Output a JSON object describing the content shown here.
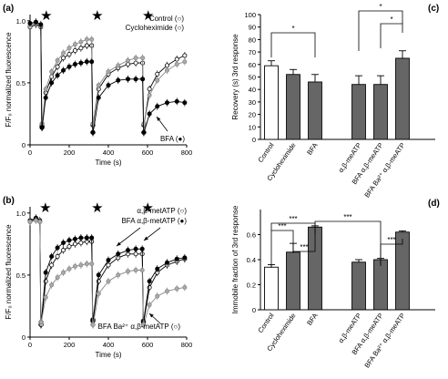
{
  "chart_data": [
    {
      "panel_label": "(a)",
      "type": "line",
      "xlabel": "Time (s)",
      "ylabel": "F/F₀ normalized fluorescence",
      "xlim": [
        0,
        800
      ],
      "ylim": [
        0,
        1.05
      ],
      "xticks": [
        "0",
        "200",
        "400",
        "600",
        "800"
      ],
      "yticks": [
        "0",
        "0.5",
        "1.0"
      ],
      "stimulus_marker": "★",
      "stimulus_times": [
        60,
        320,
        580
      ],
      "series": [
        {
          "name": "Control (○)",
          "color": "#ffffff",
          "stroke": "#000000",
          "x": [
            0,
            30,
            55,
            60,
            62,
            80,
            110,
            140,
            170,
            200,
            230,
            260,
            290,
            315,
            320,
            322,
            350,
            400,
            450,
            500,
            540,
            575,
            580,
            582,
            610,
            650,
            700,
            750,
            790
          ],
          "y": [
            0.95,
            0.97,
            0.95,
            0.15,
            0.15,
            0.42,
            0.55,
            0.63,
            0.7,
            0.73,
            0.76,
            0.78,
            0.8,
            0.8,
            0.16,
            0.16,
            0.45,
            0.57,
            0.62,
            0.65,
            0.66,
            0.66,
            0.16,
            0.16,
            0.45,
            0.57,
            0.64,
            0.69,
            0.72
          ]
        },
        {
          "name": "Cycloheximide (○)",
          "color": "#aaaaaa",
          "stroke": "#888888",
          "x": [
            0,
            30,
            55,
            60,
            62,
            80,
            110,
            140,
            170,
            200,
            230,
            260,
            290,
            315,
            320,
            322,
            350,
            400,
            450,
            500,
            540,
            575,
            580,
            582,
            610,
            650,
            700,
            750,
            790
          ],
          "y": [
            0.97,
            0.98,
            0.96,
            0.17,
            0.17,
            0.45,
            0.59,
            0.68,
            0.74,
            0.78,
            0.81,
            0.83,
            0.85,
            0.85,
            0.17,
            0.17,
            0.48,
            0.59,
            0.64,
            0.68,
            0.7,
            0.7,
            0.17,
            0.17,
            0.4,
            0.52,
            0.6,
            0.65,
            0.67
          ]
        },
        {
          "name": "BFA (●)",
          "color": "#000000",
          "stroke": "#000000",
          "x": [
            0,
            30,
            55,
            60,
            62,
            80,
            110,
            140,
            170,
            200,
            230,
            260,
            290,
            315,
            320,
            322,
            350,
            400,
            450,
            500,
            540,
            575,
            580,
            582,
            610,
            650,
            700,
            750,
            790
          ],
          "y": [
            0.98,
            0.99,
            0.97,
            0.14,
            0.14,
            0.38,
            0.5,
            0.56,
            0.6,
            0.63,
            0.65,
            0.66,
            0.67,
            0.67,
            0.1,
            0.1,
            0.38,
            0.48,
            0.52,
            0.53,
            0.53,
            0.53,
            0.1,
            0.1,
            0.25,
            0.31,
            0.34,
            0.35,
            0.34
          ]
        }
      ]
    },
    {
      "panel_label": "(b)",
      "type": "line",
      "xlabel": "Time (s)",
      "ylabel": "F/F₀ normalized fluorescence",
      "xlim": [
        0,
        800
      ],
      "ylim": [
        0,
        1.05
      ],
      "xticks": [
        "0",
        "200",
        "400",
        "600",
        "800"
      ],
      "yticks": [
        "0",
        "0.5",
        "1.0"
      ],
      "stimulus_marker": "★",
      "stimulus_times": [
        55,
        320,
        578
      ],
      "series": [
        {
          "name": "α,β-metATP (○)",
          "color": "#ffffff",
          "stroke": "#000000",
          "x": [
            0,
            30,
            50,
            55,
            57,
            80,
            110,
            140,
            170,
            200,
            230,
            260,
            290,
            315,
            320,
            322,
            350,
            400,
            450,
            500,
            540,
            573,
            578,
            580,
            610,
            650,
            700,
            750,
            790
          ],
          "y": [
            0.93,
            0.95,
            0.93,
            0.1,
            0.1,
            0.45,
            0.58,
            0.65,
            0.7,
            0.73,
            0.75,
            0.76,
            0.77,
            0.77,
            0.13,
            0.13,
            0.45,
            0.58,
            0.64,
            0.67,
            0.67,
            0.67,
            0.12,
            0.12,
            0.4,
            0.52,
            0.58,
            0.61,
            0.63
          ]
        },
        {
          "name": "BFA α,β-metATP (●)",
          "color": "#000000",
          "stroke": "#000000",
          "x": [
            0,
            30,
            50,
            55,
            57,
            80,
            110,
            140,
            170,
            200,
            230,
            260,
            290,
            315,
            320,
            322,
            350,
            400,
            450,
            500,
            540,
            573,
            578,
            580,
            610,
            650,
            700,
            750,
            790
          ],
          "y": [
            0.94,
            0.96,
            0.94,
            0.12,
            0.12,
            0.52,
            0.65,
            0.72,
            0.76,
            0.78,
            0.79,
            0.8,
            0.8,
            0.8,
            0.14,
            0.14,
            0.5,
            0.62,
            0.67,
            0.7,
            0.71,
            0.71,
            0.13,
            0.13,
            0.45,
            0.55,
            0.6,
            0.63,
            0.64
          ]
        },
        {
          "name": "BFA Ba²⁺ α,β-metATP (○)",
          "color": "#aaaaaa",
          "stroke": "#888888",
          "x": [
            0,
            30,
            50,
            55,
            57,
            80,
            110,
            140,
            170,
            200,
            230,
            260,
            290,
            315,
            320,
            322,
            350,
            400,
            450,
            500,
            540,
            573,
            578,
            580,
            610,
            650,
            700,
            750,
            790
          ],
          "y": [
            0.93,
            0.94,
            0.93,
            0.12,
            0.12,
            0.32,
            0.42,
            0.48,
            0.52,
            0.55,
            0.57,
            0.58,
            0.59,
            0.59,
            0.1,
            0.1,
            0.35,
            0.45,
            0.5,
            0.53,
            0.54,
            0.54,
            0.1,
            0.1,
            0.26,
            0.33,
            0.37,
            0.39,
            0.4
          ]
        }
      ]
    },
    {
      "panel_label": "(c)",
      "type": "bar",
      "ylabel": "Recovery (s) 3rd response",
      "ylim": [
        0,
        100
      ],
      "yticks": [
        "0",
        "10",
        "20",
        "30",
        "40",
        "50",
        "60",
        "70",
        "80",
        "90",
        "100"
      ],
      "categories": [
        "Control",
        "Cycloheximide",
        "BFA",
        "α,β-meATP",
        "BFA α,β-meATP",
        "BFA Ba²⁺ α,β-meATP"
      ],
      "values": [
        59,
        52,
        46,
        44,
        44,
        65
      ],
      "errors": [
        4,
        4,
        6,
        7,
        7,
        6
      ],
      "bar_colors": [
        "#ffffff",
        "#666666",
        "#666666",
        "#666666",
        "#666666",
        "#666666"
      ],
      "significance": [
        {
          "from": 0,
          "to": 2,
          "label": "*"
        },
        {
          "from": 3,
          "to": 5,
          "label": "*"
        },
        {
          "from": 4,
          "to": 5,
          "label": "*"
        }
      ]
    },
    {
      "panel_label": "(d)",
      "type": "bar",
      "ylabel": "Immobile fraction of 3rd response",
      "ylim": [
        0,
        0.8
      ],
      "yticks": [
        "0",
        "0.2",
        "0.4",
        "0.6"
      ],
      "categories": [
        "Control",
        "Cycloheximide",
        "BFA",
        "α,β-meATP",
        "BFA α,β-meATP",
        "BFA Ba²⁺ α,β-meATP"
      ],
      "values": [
        0.34,
        0.46,
        0.66,
        0.38,
        0.4,
        0.62
      ],
      "errors": [
        0.02,
        0.07,
        0.01,
        0.02,
        0.01,
        0.01
      ],
      "bar_colors": [
        "#ffffff",
        "#666666",
        "#666666",
        "#666666",
        "#666666",
        "#666666"
      ],
      "significance": [
        {
          "from": 0,
          "to": 1,
          "label": "***"
        },
        {
          "from": 1,
          "to": 2,
          "label": "***"
        },
        {
          "from": 0,
          "to": 2,
          "label": "***"
        },
        {
          "from": 2,
          "to": 4,
          "label": "***"
        },
        {
          "from": 4,
          "to": 5,
          "label": "***"
        }
      ]
    }
  ]
}
